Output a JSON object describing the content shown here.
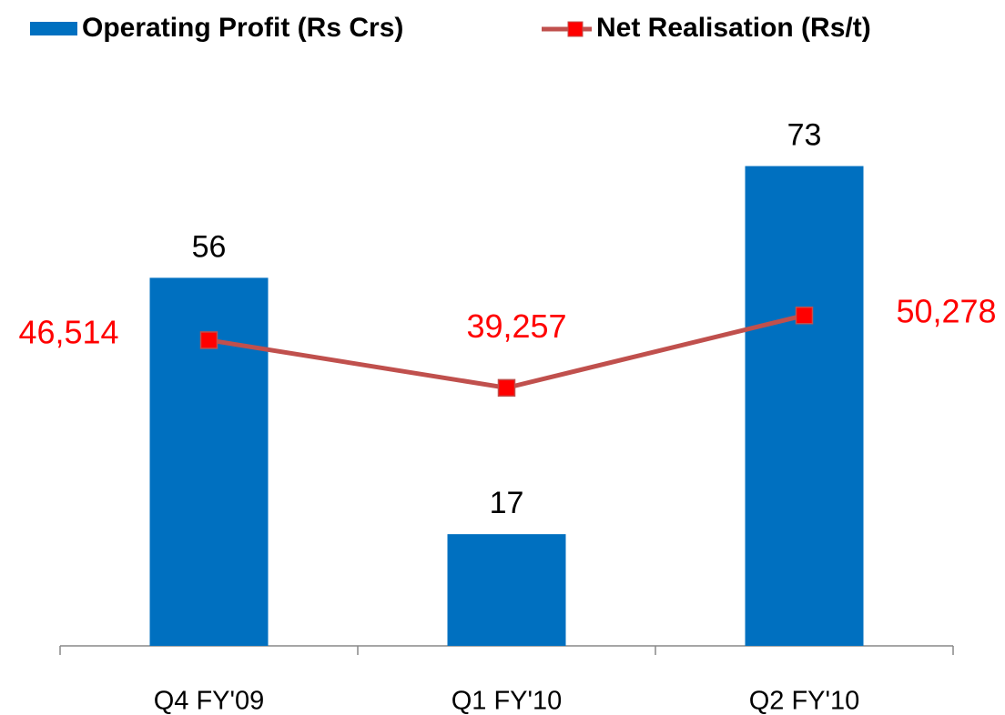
{
  "chart_data": {
    "type": "bar+line",
    "categories": [
      "Q4 FY'09",
      "Q1 FY'10",
      "Q2 FY'10"
    ],
    "series": [
      {
        "name": "Operating Profit (Rs Crs)",
        "type": "bar",
        "color": "#0070c0",
        "values": [
          56,
          17,
          73
        ]
      },
      {
        "name": "Net Realisation (Rs/t)",
        "type": "line",
        "axis": "y2",
        "color": "#c0504d",
        "marker_color": "#ff0000",
        "label_color": "#ff0000",
        "values": [
          46514,
          39257,
          50278
        ],
        "value_labels": [
          "46,514",
          "39,257",
          "50,278"
        ]
      }
    ],
    "ylim": [
      0,
      80
    ],
    "y2lim": [
      0,
      80000
    ],
    "grid": false,
    "legend": "top"
  }
}
